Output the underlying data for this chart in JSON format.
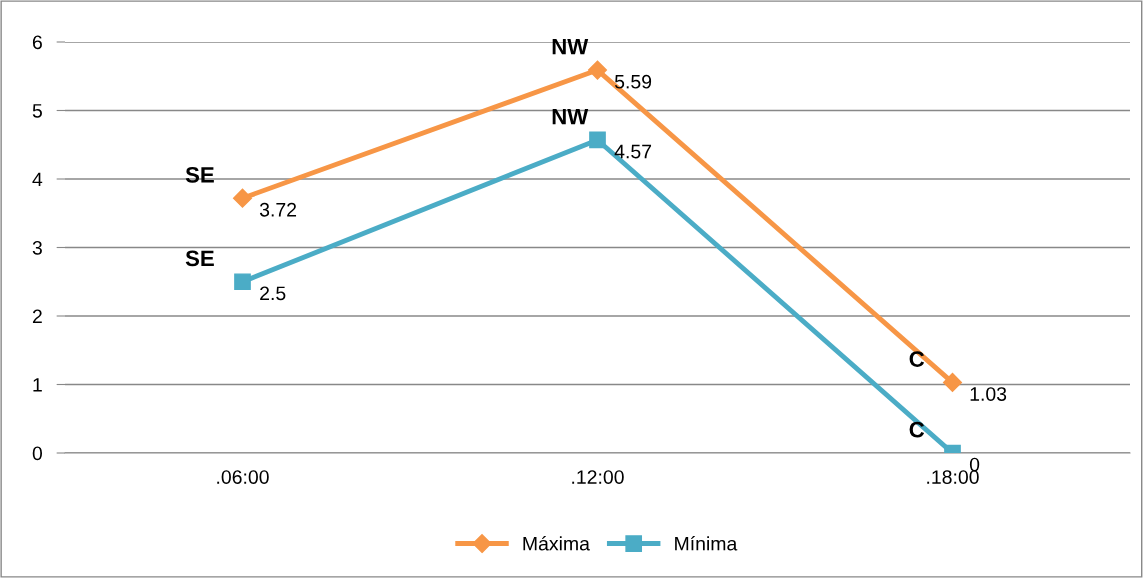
{
  "chart_data": {
    "type": "line",
    "categories": [
      ".06:00",
      ".12:00",
      ".18:00"
    ],
    "series": [
      {
        "name": "Máxima",
        "color": "#f79646",
        "marker": "diamond",
        "values": [
          3.72,
          5.59,
          1.03
        ]
      },
      {
        "name": "Mínima",
        "color": "#4bacc6",
        "marker": "square",
        "values": [
          2.5,
          4.57,
          0
        ]
      }
    ],
    "ylim": [
      0,
      6
    ],
    "yticks": [
      0,
      1,
      2,
      3,
      4,
      5,
      6
    ],
    "grid": "y",
    "legend": "bottom",
    "data_labels": true,
    "annotations": [
      {
        "text": "SE",
        "x": ".06:00",
        "y": 3.72
      },
      {
        "text": "NW",
        "x": ".12:00",
        "y": 5.59
      },
      {
        "text": "C",
        "x": ".18:00",
        "y": 1.03
      },
      {
        "text": "SE",
        "x": ".06:00",
        "y": 2.5
      },
      {
        "text": "NW",
        "x": ".12:00",
        "y": 4.57
      },
      {
        "text": "C",
        "x": ".18:00",
        "y": 0
      }
    ]
  }
}
